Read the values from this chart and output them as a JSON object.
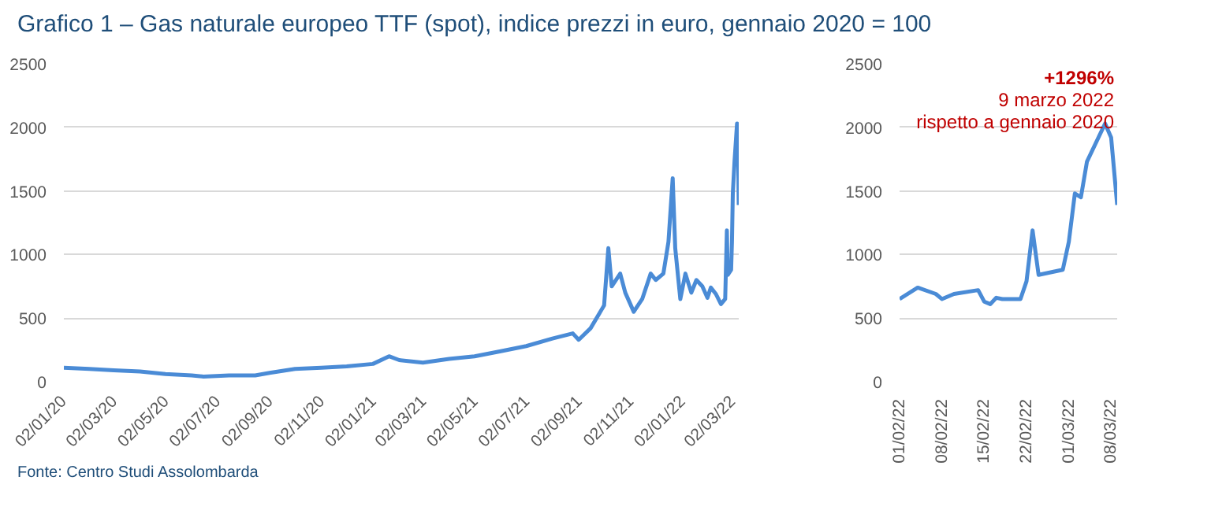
{
  "chart_data": [
    {
      "type": "line",
      "title": "Grafico 1 – Gas naturale europeo TTF (spot), indice prezzi in euro, gennaio 2020 = 100",
      "annotations": [
        "Fonte: Centro Studi Assolombarda"
      ],
      "series": [
        {
          "color": "#4a8bd6",
          "x": [
            "2020-01-02",
            "2020-02-01",
            "2020-03-01",
            "2020-04-01",
            "2020-05-01",
            "2020-06-01",
            "2020-06-15",
            "2020-07-15",
            "2020-08-15",
            "2020-09-01",
            "2020-10-01",
            "2020-11-01",
            "2020-12-01",
            "2021-01-01",
            "2021-01-20",
            "2021-02-01",
            "2021-03-01",
            "2021-04-01",
            "2021-05-01",
            "2021-06-01",
            "2021-07-01",
            "2021-08-01",
            "2021-08-25",
            "2021-09-01",
            "2021-09-15",
            "2021-10-01",
            "2021-10-06",
            "2021-10-10",
            "2021-10-20",
            "2021-10-26",
            "2021-11-05",
            "2021-11-15",
            "2021-11-25",
            "2021-12-01",
            "2021-12-10",
            "2021-12-16",
            "2021-12-21",
            "2021-12-24",
            "2021-12-30",
            "2022-01-05",
            "2022-01-12",
            "2022-01-18",
            "2022-01-25",
            "2022-01-31",
            "2022-02-04",
            "2022-02-10",
            "2022-02-16",
            "2022-02-21",
            "2022-02-23",
            "2022-02-24",
            "2022-02-28",
            "2022-03-01",
            "2022-03-02",
            "2022-03-04",
            "2022-03-07",
            "2022-03-08",
            "2022-03-09"
          ],
          "values": [
            110,
            100,
            90,
            80,
            60,
            50,
            40,
            50,
            50,
            70,
            100,
            110,
            120,
            140,
            200,
            170,
            150,
            180,
            200,
            240,
            280,
            340,
            380,
            330,
            420,
            600,
            1050,
            750,
            850,
            700,
            550,
            650,
            850,
            800,
            850,
            1100,
            1600,
            1050,
            650,
            850,
            700,
            800,
            750,
            660,
            740,
            690,
            610,
            650,
            1190,
            840,
            880,
            1100,
            1480,
            1730,
            2030,
            1920,
            1390
          ]
        }
      ],
      "xlim": [
        "2020-01-02",
        "2022-03-09"
      ],
      "ylim": [
        0,
        2500
      ],
      "yticks": [
        0,
        500,
        1000,
        1500,
        2000,
        2500
      ],
      "xticks": [
        {
          "value": "2020-01-02",
          "label": "02/01/20"
        },
        {
          "value": "2020-03-02",
          "label": "02/03/20"
        },
        {
          "value": "2020-05-02",
          "label": "02/05/20"
        },
        {
          "value": "2020-07-02",
          "label": "02/07/20"
        },
        {
          "value": "2020-09-02",
          "label": "02/09/20"
        },
        {
          "value": "2020-11-02",
          "label": "02/11/20"
        },
        {
          "value": "2021-01-02",
          "label": "02/01/21"
        },
        {
          "value": "2021-03-02",
          "label": "02/03/21"
        },
        {
          "value": "2021-05-02",
          "label": "02/05/21"
        },
        {
          "value": "2021-07-02",
          "label": "02/07/21"
        },
        {
          "value": "2021-09-02",
          "label": "02/09/21"
        },
        {
          "value": "2021-11-02",
          "label": "02/11/21"
        },
        {
          "value": "2022-01-02",
          "label": "02/01/22"
        },
        {
          "value": "2022-03-02",
          "label": "02/03/22"
        }
      ],
      "grid": "y",
      "marker": "none",
      "line_style": "solid"
    },
    {
      "type": "line",
      "annotations": [
        "+1296%",
        "9 marzo 2022",
        "rispetto a gennaio 2020"
      ],
      "series": [
        {
          "color": "#4a8bd6",
          "x": [
            "2022-02-01",
            "2022-02-04",
            "2022-02-07",
            "2022-02-08",
            "2022-02-10",
            "2022-02-14",
            "2022-02-15",
            "2022-02-16",
            "2022-02-17",
            "2022-02-18",
            "2022-02-21",
            "2022-02-22",
            "2022-02-23",
            "2022-02-24",
            "2022-02-28",
            "2022-03-01",
            "2022-03-02",
            "2022-03-03",
            "2022-03-04",
            "2022-03-07",
            "2022-03-08",
            "2022-03-09"
          ],
          "values": [
            650,
            740,
            690,
            650,
            690,
            720,
            630,
            610,
            660,
            650,
            650,
            790,
            1190,
            840,
            880,
            1100,
            1480,
            1450,
            1730,
            2030,
            1920,
            1390
          ]
        }
      ],
      "xlim": [
        "2022-02-01",
        "2022-03-09"
      ],
      "ylim": [
        0,
        2500
      ],
      "yticks": [
        0,
        500,
        1000,
        1500,
        2000,
        2500
      ],
      "xticks": [
        {
          "value": "2022-02-01",
          "label": "01/02/22"
        },
        {
          "value": "2022-02-08",
          "label": "08/02/22"
        },
        {
          "value": "2022-02-15",
          "label": "15/02/22"
        },
        {
          "value": "2022-02-22",
          "label": "22/02/22"
        },
        {
          "value": "2022-03-01",
          "label": "01/03/22"
        },
        {
          "value": "2022-03-08",
          "label": "08/03/22"
        }
      ],
      "grid": "y",
      "marker": "none",
      "line_style": "solid"
    }
  ]
}
